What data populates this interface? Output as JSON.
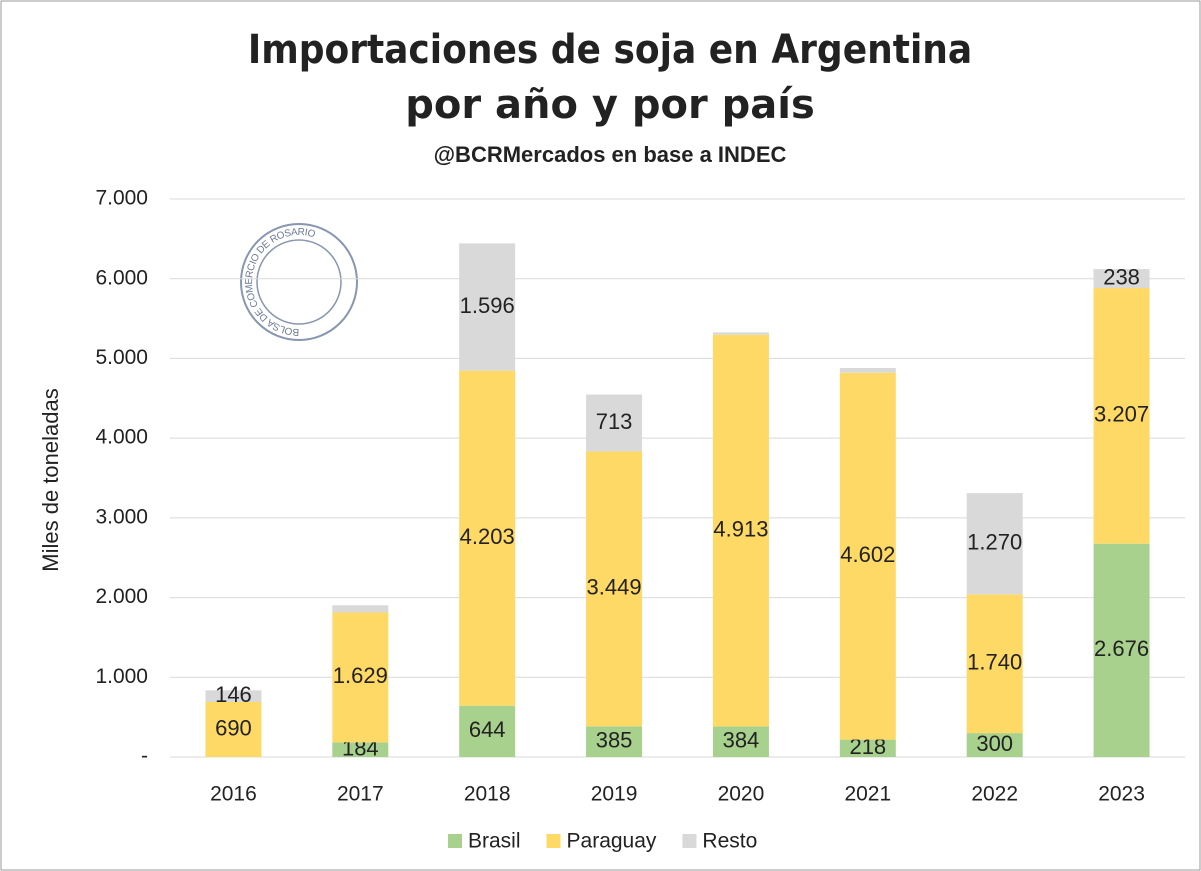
{
  "chart_data": {
    "type": "stacked_bar",
    "title": "Importaciones de soja en Argentina",
    "title_line2": "por año y por país",
    "subtitle": "@BCRMercados en base a INDEC",
    "logo_text": "BOLSA DE COMERCIO DE ROSARIO",
    "y_label": "Miles de toneladas",
    "categories": [
      "2016",
      "2017",
      "2018",
      "2019",
      "2020",
      "2021",
      "2022",
      "2023"
    ],
    "series": [
      {
        "name": "Brasil",
        "color": "#a9d18e",
        "values": [
          0,
          184,
          644,
          385,
          384,
          218,
          300,
          2676
        ],
        "value_labels": [
          null,
          "184",
          "644",
          "385",
          "384",
          "218",
          "300",
          "2.676"
        ]
      },
      {
        "name": "Paraguay",
        "color": "#ffd966",
        "values": [
          690,
          1629,
          4203,
          3449,
          4913,
          4602,
          1740,
          3207
        ],
        "value_labels": [
          "690",
          "1.629",
          "4.203",
          "3.449",
          "4.913",
          "4.602",
          "1.740",
          "3.207"
        ]
      },
      {
        "name": "Resto",
        "color": "#d9d9d9",
        "values": [
          146,
          90,
          1596,
          713,
          30,
          60,
          1270,
          238
        ],
        "value_labels": [
          "146",
          null,
          "1.596",
          "713",
          null,
          null,
          "1.270",
          "238"
        ]
      }
    ],
    "ylim": [
      0,
      7000
    ],
    "yticks": [
      {
        "value": 0,
        "label": "-"
      },
      {
        "value": 1000,
        "label": "1.000"
      },
      {
        "value": 2000,
        "label": "2.000"
      },
      {
        "value": 3000,
        "label": "3.000"
      },
      {
        "value": 4000,
        "label": "4.000"
      },
      {
        "value": 5000,
        "label": "5.000"
      },
      {
        "value": 6000,
        "label": "6.000"
      },
      {
        "value": 7000,
        "label": "7.000"
      }
    ],
    "grid": true,
    "legend": "bottom"
  }
}
